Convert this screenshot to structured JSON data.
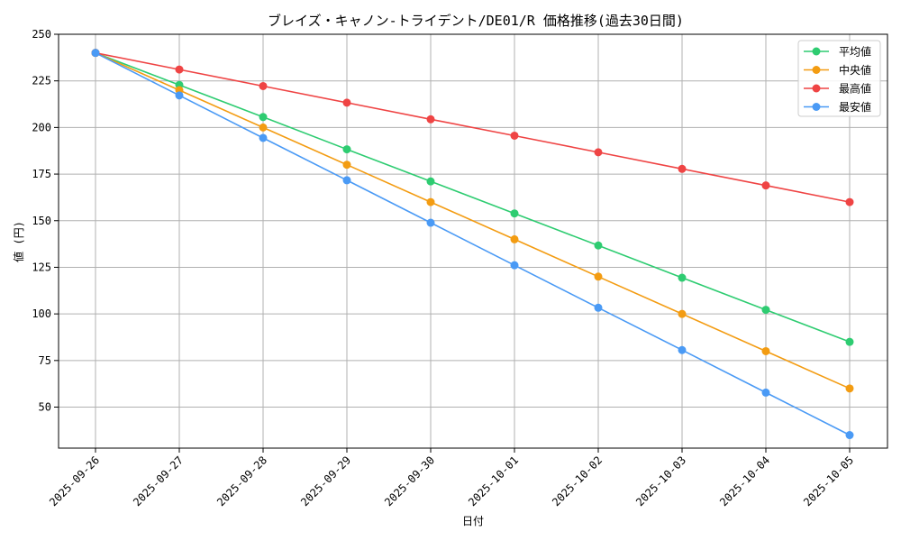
{
  "chart_data": {
    "type": "line",
    "title": "ブレイズ・キャノン-トライデント/DE01/R 価格推移(過去30日間)",
    "xlabel": "日付",
    "ylabel": "値 (円)",
    "ylim": [
      28,
      250
    ],
    "yticks": [
      50,
      75,
      100,
      125,
      150,
      175,
      200,
      225,
      250
    ],
    "grid": true,
    "legend_position": "top-right",
    "categories": [
      "2025-09-26",
      "2025-09-27",
      "2025-09-28",
      "2025-09-29",
      "2025-09-30",
      "2025-10-01",
      "2025-10-02",
      "2025-10-03",
      "2025-10-04",
      "2025-10-05"
    ],
    "series": [
      {
        "name": "平均値",
        "color": "#2ecc71",
        "values": [
          240,
          222.8,
          205.6,
          188.3,
          171.1,
          153.9,
          136.7,
          119.4,
          102.2,
          85
        ]
      },
      {
        "name": "中央値",
        "color": "#f39c12",
        "values": [
          240,
          220,
          200,
          180,
          160,
          140,
          120,
          100,
          80,
          60
        ]
      },
      {
        "name": "最高値",
        "color": "#ef4444",
        "values": [
          240,
          231.1,
          222.2,
          213.3,
          204.4,
          195.6,
          186.7,
          177.8,
          168.9,
          160
        ]
      },
      {
        "name": "最安値",
        "color": "#4a9af5",
        "values": [
          240,
          217.2,
          194.4,
          171.7,
          148.9,
          126.1,
          103.3,
          80.6,
          57.8,
          35
        ]
      }
    ]
  }
}
